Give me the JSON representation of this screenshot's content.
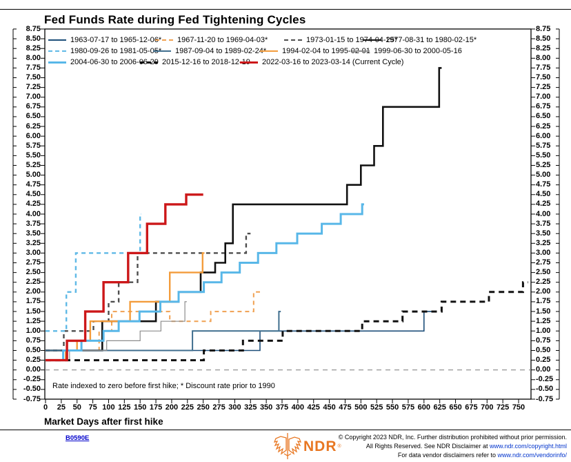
{
  "page": {
    "title": "Fed Funds Rate during Fed Tightening Cycles"
  },
  "colors": {
    "accent_orange": "#e87722",
    "link_blue": "#0033cc",
    "chart_id_blue": "#0000cc",
    "axis_black": "#000000",
    "zero_line_gray": "#888888"
  },
  "chart_data": {
    "type": "line",
    "title": "Fed Funds Rate during Fed Tightening Cycles",
    "xlabel": "Market Days after first hike",
    "ylabel": "",
    "note": "Rate indexed to zero before first hike; * Discount rate prior to 1990",
    "xlim": [
      0,
      769
    ],
    "ylim": [
      -0.75,
      8.75
    ],
    "grid": false,
    "zero_line": 0.0,
    "x_ticks": [
      0,
      25,
      50,
      75,
      100,
      125,
      150,
      175,
      200,
      225,
      250,
      275,
      300,
      325,
      350,
      375,
      400,
      425,
      450,
      475,
      500,
      525,
      550,
      575,
      600,
      625,
      650,
      675,
      700,
      725,
      750
    ],
    "y_tick_labels": [
      "8.75",
      "8.50",
      "8.25",
      "8.00",
      "7.75",
      "7.50",
      "7.25",
      "7.00",
      "6.75",
      "6.50",
      "6.25",
      "6.00",
      "5.75",
      "5.50",
      "5.25",
      "5.00",
      "4.75",
      "4.50",
      "4.25",
      "4.00",
      "3.75",
      "3.50",
      "3.25",
      "3.00",
      "2.75",
      "2.50",
      "2.25",
      "2.00",
      "1.75",
      "1.50",
      "1.25",
      "1.00",
      "0.75",
      "0.50",
      "0.25",
      "0.00",
      "-0.25",
      "-0.50",
      "-0.75"
    ],
    "legend_rows": [
      [
        0,
        1,
        2,
        3
      ],
      [
        4,
        5,
        6,
        7
      ],
      [
        8,
        9,
        10
      ]
    ],
    "series": [
      {
        "name": "1963-07-17 to 1965-12-06*",
        "color": "#1c4e79",
        "style": "solid",
        "width": 1.6,
        "steps": [
          [
            0,
            0.5
          ],
          [
            340,
            1.0
          ],
          [
            600,
            1.5
          ]
        ],
        "end": 612
      },
      {
        "name": "1967-11-20 to 1969-04-03*",
        "color": "#f0a050",
        "style": "dashed",
        "width": 2,
        "steps": [
          [
            0,
            0.5
          ],
          [
            85,
            1.0
          ],
          [
            105,
            1.5
          ],
          [
            197,
            1.25
          ],
          [
            262,
            1.5
          ],
          [
            330,
            2.0
          ]
        ],
        "end": 340
      },
      {
        "name": "1973-01-15 to 1974-04-25*",
        "color": "#4d4d4d",
        "style": "dashed",
        "width": 2.4,
        "steps": [
          [
            0,
            0.5
          ],
          [
            29,
            1.0
          ],
          [
            76,
            1.25
          ],
          [
            100,
            1.75
          ],
          [
            116,
            2.25
          ],
          [
            146,
            3.0
          ],
          [
            318,
            3.5
          ]
        ],
        "end": 325
      },
      {
        "name": "1977-08-31 to 1980-02-15*",
        "color": "#111111",
        "style": "solid",
        "width": 2.6,
        "steps": [
          [
            0,
            0.5
          ],
          [
            90,
            1.25
          ],
          [
            175,
            1.75
          ],
          [
            211,
            2.0
          ],
          [
            246,
            2.5
          ],
          [
            269,
            2.75
          ],
          [
            285,
            3.25
          ],
          [
            297,
            4.25
          ],
          [
            478,
            4.75
          ],
          [
            500,
            5.25
          ],
          [
            521,
            5.75
          ],
          [
            535,
            6.75
          ],
          [
            624,
            7.75
          ]
        ],
        "end": 628
      },
      {
        "name": "1980-09-26 to 1981-05-05*",
        "color": "#5fb9e6",
        "style": "dashed",
        "width": 2.4,
        "steps": [
          [
            0,
            1.0
          ],
          [
            33,
            2.0
          ],
          [
            48,
            3.0
          ],
          [
            150,
            4.0
          ]
        ],
        "end": 152
      },
      {
        "name": "1987-09-04 to 1989-02-24*",
        "color": "#3f6e8e",
        "style": "solid",
        "width": 2,
        "steps": [
          [
            0,
            0.5
          ],
          [
            233,
            1.0
          ],
          [
            370,
            1.5
          ]
        ],
        "end": 373
      },
      {
        "name": "1994-02-04 to 1995-02-01",
        "color": "#f39c3b",
        "style": "solid",
        "width": 2.4,
        "steps": [
          [
            0,
            0.25
          ],
          [
            32,
            0.5
          ],
          [
            50,
            0.75
          ],
          [
            71,
            1.25
          ],
          [
            134,
            1.75
          ],
          [
            197,
            2.5
          ],
          [
            249,
            3.0
          ]
        ],
        "end": 252
      },
      {
        "name": "1999-06-30 to 2000-05-16",
        "color": "#8c8c8c",
        "style": "solid",
        "width": 1.2,
        "steps": [
          [
            0,
            0.25
          ],
          [
            38,
            0.5
          ],
          [
            97,
            0.75
          ],
          [
            150,
            1.0
          ],
          [
            183,
            1.25
          ],
          [
            221,
            1.75
          ]
        ],
        "end": 224
      },
      {
        "name": "2004-06-30 to 2006-06-29",
        "color": "#58b7e8",
        "style": "solid",
        "width": 3,
        "steps": [
          [
            0,
            0.25
          ],
          [
            28,
            0.5
          ],
          [
            57,
            0.75
          ],
          [
            92,
            1.0
          ],
          [
            116,
            1.25
          ],
          [
            149,
            1.5
          ],
          [
            182,
            1.75
          ],
          [
            211,
            2.0
          ],
          [
            251,
            2.25
          ],
          [
            279,
            2.5
          ],
          [
            308,
            2.75
          ],
          [
            337,
            3.0
          ],
          [
            366,
            3.25
          ],
          [
            399,
            3.5
          ],
          [
            438,
            3.75
          ],
          [
            468,
            4.0
          ],
          [
            502,
            4.25
          ]
        ],
        "end": 505
      },
      {
        "name": "2015-12-16 to 2018-12-19",
        "color": "#111111",
        "style": "dashed",
        "width": 3,
        "steps": [
          [
            0,
            0.25
          ],
          [
            251,
            0.5
          ],
          [
            313,
            0.75
          ],
          [
            376,
            1.0
          ],
          [
            502,
            1.25
          ],
          [
            566,
            1.5
          ],
          [
            628,
            1.75
          ],
          [
            703,
            2.0
          ],
          [
            757,
            2.25
          ]
        ],
        "end": 765
      },
      {
        "name": "2022-03-16 to 2023-03-14 (Current Cycle)",
        "color": "#cc1719",
        "style": "solid",
        "width": 3.4,
        "steps": [
          [
            0,
            0.25
          ],
          [
            34,
            0.75
          ],
          [
            63,
            1.5
          ],
          [
            92,
            2.25
          ],
          [
            131,
            3.0
          ],
          [
            161,
            3.75
          ],
          [
            190,
            4.25
          ],
          [
            223,
            4.5
          ]
        ],
        "end": 250
      }
    ]
  },
  "footer": {
    "chart_id": "B0590E",
    "logo_text": "NDR",
    "logo_reg": "®",
    "copyright_line1": "© Copyright 2023 NDR, Inc. Further distribution prohibited without prior permission.",
    "copyright_line2_prefix": "All Rights Reserved. See NDR Disclaimer at ",
    "copyright_line2_link": "www.ndr.com/copyright.html",
    "copyright_line3_prefix": "For data vendor disclaimers refer to ",
    "copyright_line3_link": "www.ndr.com/vendorinfo/"
  }
}
